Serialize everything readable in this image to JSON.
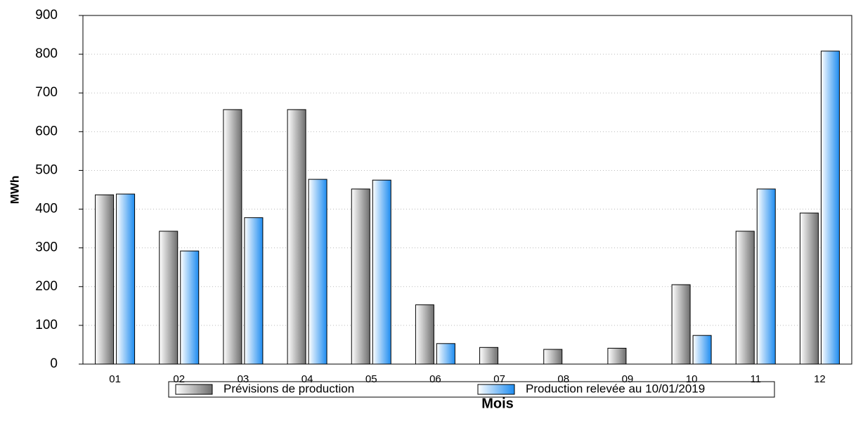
{
  "chart_data": {
    "type": "bar",
    "categories": [
      "01",
      "02",
      "03",
      "04",
      "05",
      "06",
      "07",
      "08",
      "09",
      "10",
      "11",
      "12"
    ],
    "series": [
      {
        "name": "Prévisions de production",
        "color": "#6e6e6e",
        "values": [
          437,
          343,
          657,
          657,
          452,
          153,
          43,
          38,
          41,
          205,
          343,
          390
        ]
      },
      {
        "name": "Production relevée au 10/01/2019",
        "color": "#1e8cf0",
        "values": [
          439,
          292,
          378,
          477,
          475,
          53,
          null,
          null,
          null,
          74,
          452,
          808
        ]
      }
    ],
    "xlabel": "Mois",
    "ylabel": "MWh",
    "ylim": [
      0,
      900
    ],
    "yticks": [
      0,
      100,
      200,
      300,
      400,
      500,
      600,
      700,
      800,
      900
    ],
    "grid": true
  }
}
